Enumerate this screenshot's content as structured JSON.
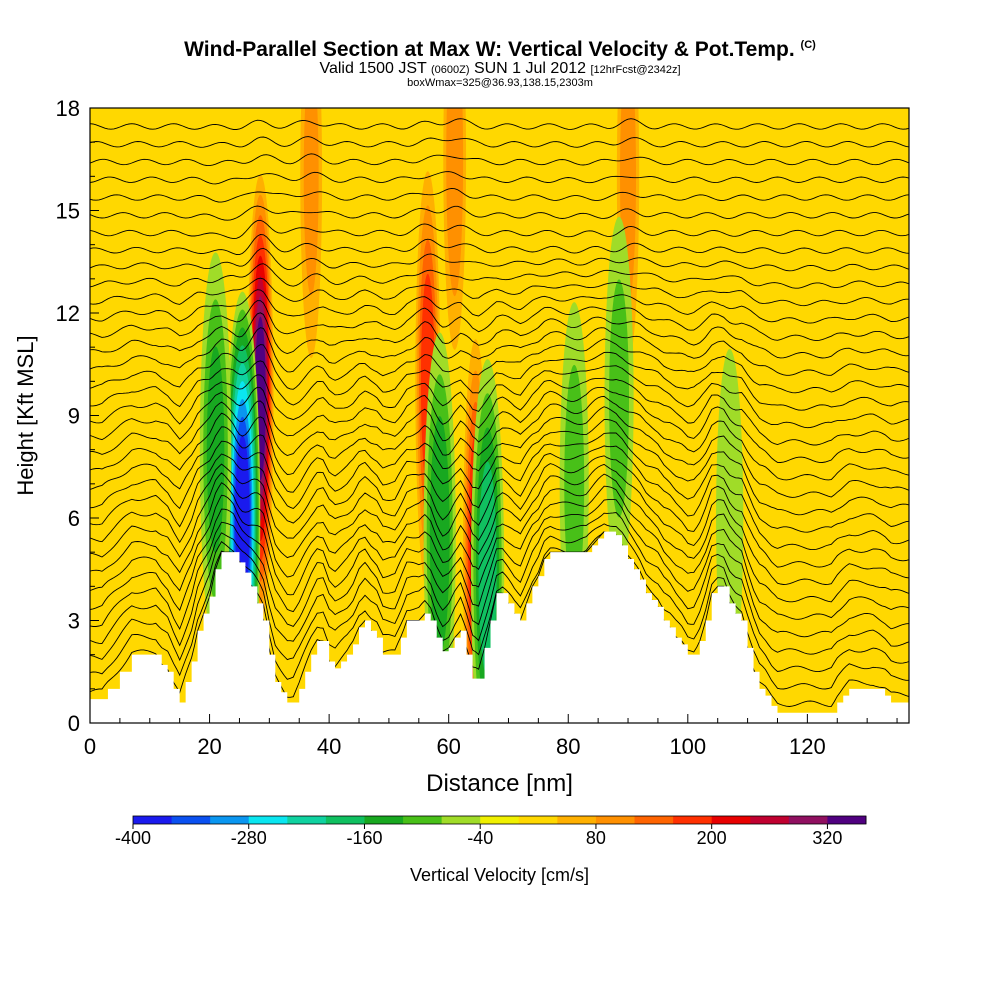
{
  "title": {
    "main": "Wind-Parallel Section at Max W: Vertical Velocity & Pot.Temp.",
    "main_suffix": "(C)",
    "valid_prefix": "Valid 1500 JST",
    "valid_utc": "(0600Z)",
    "valid_date": "SUN 1 Jul 2012",
    "forecast": "[12hrFcst@2342z]",
    "box": "boxWmax=325@36.93,138.15,2303m"
  },
  "chart_data": {
    "type": "heatmap",
    "xlabel": "Distance [nm]",
    "ylabel": "Height [Kft MSL]",
    "xlim": [
      0,
      137
    ],
    "ylim": [
      0,
      18
    ],
    "x_ticks": [
      0,
      20,
      40,
      60,
      80,
      100,
      120
    ],
    "y_ticks": [
      0,
      3,
      6,
      9,
      12,
      15,
      18
    ],
    "colorbar": {
      "label": "Vertical Velocity [cm/s]",
      "levels": [
        -400,
        -360,
        -320,
        -280,
        -240,
        -200,
        -160,
        -120,
        -80,
        -40,
        0,
        40,
        80,
        120,
        160,
        200,
        240,
        280,
        320,
        360
      ],
      "tick_labels": [
        -400,
        -280,
        -160,
        -40,
        80,
        200,
        320
      ],
      "colors": [
        "#1a1aee",
        "#0a50f0",
        "#0a96f0",
        "#0ae6f0",
        "#10d2a0",
        "#10c060",
        "#18a820",
        "#48c018",
        "#a0dc28",
        "#f0f000",
        "#ffd800",
        "#ffb000",
        "#ff9000",
        "#ff6400",
        "#ff3000",
        "#e80000",
        "#c00030",
        "#901060",
        "#500080"
      ]
    },
    "terrain_kft": [
      [
        0,
        0.7
      ],
      [
        2,
        0.7
      ],
      [
        3,
        1.0
      ],
      [
        5,
        1.5
      ],
      [
        7,
        2.0
      ],
      [
        9,
        2.0
      ],
      [
        11,
        2.0
      ],
      [
        12,
        1.7
      ],
      [
        13,
        1.5
      ],
      [
        14,
        1.0
      ],
      [
        15,
        0.6
      ],
      [
        16,
        1.2
      ],
      [
        17,
        1.8
      ],
      [
        18,
        2.7
      ],
      [
        19,
        3.2
      ],
      [
        20,
        3.7
      ],
      [
        21,
        4.5
      ],
      [
        22,
        5.0
      ],
      [
        24,
        5.0
      ],
      [
        25,
        4.7
      ],
      [
        26,
        4.4
      ],
      [
        27,
        4.0
      ],
      [
        28,
        3.5
      ],
      [
        29,
        3.0
      ],
      [
        30,
        2.0
      ],
      [
        31,
        1.2
      ],
      [
        32,
        0.9
      ],
      [
        33,
        0.6
      ],
      [
        34,
        0.6
      ],
      [
        35,
        1.0
      ],
      [
        36,
        1.5
      ],
      [
        37,
        2.0
      ],
      [
        38,
        2.4
      ],
      [
        39,
        2.4
      ],
      [
        40,
        1.8
      ],
      [
        41,
        1.6
      ],
      [
        42,
        1.8
      ],
      [
        43,
        2.0
      ],
      [
        44,
        2.3
      ],
      [
        45,
        2.8
      ],
      [
        46,
        3.0
      ],
      [
        47,
        2.7
      ],
      [
        48,
        2.5
      ],
      [
        49,
        2.0
      ],
      [
        51,
        2.0
      ],
      [
        52,
        2.5
      ],
      [
        53,
        3.0
      ],
      [
        55,
        3.0
      ],
      [
        56,
        3.2
      ],
      [
        57,
        3.0
      ],
      [
        58,
        2.5
      ],
      [
        59,
        2.1
      ],
      [
        60,
        2.2
      ],
      [
        61,
        2.5
      ],
      [
        62,
        2.7
      ],
      [
        63,
        2.0
      ],
      [
        64,
        1.3
      ],
      [
        65,
        1.3
      ],
      [
        66,
        2.2
      ],
      [
        67,
        3.0
      ],
      [
        68,
        3.8
      ],
      [
        69,
        3.8
      ],
      [
        70,
        3.5
      ],
      [
        71,
        3.2
      ],
      [
        72,
        3.0
      ],
      [
        73,
        3.5
      ],
      [
        74,
        4.0
      ],
      [
        75,
        4.3
      ],
      [
        76,
        4.8
      ],
      [
        77,
        5.0
      ],
      [
        83,
        5.0
      ],
      [
        84,
        5.2
      ],
      [
        85,
        5.4
      ],
      [
        86,
        5.6
      ],
      [
        88,
        5.5
      ],
      [
        89,
        5.2
      ],
      [
        90,
        4.8
      ],
      [
        91,
        4.5
      ],
      [
        92,
        4.2
      ],
      [
        93,
        3.8
      ],
      [
        94,
        3.6
      ],
      [
        95,
        3.4
      ],
      [
        96,
        3.0
      ],
      [
        97,
        2.8
      ],
      [
        98,
        2.5
      ],
      [
        99,
        2.3
      ],
      [
        100,
        2.0
      ],
      [
        101,
        2.0
      ],
      [
        102,
        2.4
      ],
      [
        103,
        3.0
      ],
      [
        104,
        3.8
      ],
      [
        105,
        4.0
      ],
      [
        106,
        4.0
      ],
      [
        107,
        3.5
      ],
      [
        108,
        3.2
      ],
      [
        109,
        3.0
      ],
      [
        110,
        2.2
      ],
      [
        111,
        1.5
      ],
      [
        112,
        1.0
      ],
      [
        113,
        0.8
      ],
      [
        114,
        0.5
      ],
      [
        115,
        0.3
      ],
      [
        117,
        0.3
      ],
      [
        120,
        0.3
      ],
      [
        121,
        0.3
      ],
      [
        123,
        0.3
      ],
      [
        124,
        0.3
      ],
      [
        125,
        0.6
      ],
      [
        126,
        0.8
      ],
      [
        127,
        1.0
      ],
      [
        130,
        1.0
      ],
      [
        131,
        1.0
      ],
      [
        133,
        0.8
      ],
      [
        134,
        0.6
      ],
      [
        135,
        0.6
      ],
      [
        137,
        0.6
      ]
    ],
    "updraft_cores": [
      {
        "x": 28.5,
        "z": 9.5,
        "w": 330
      },
      {
        "x": 56.5,
        "z": 10.0,
        "w": 180
      },
      {
        "x": 64.5,
        "z": 5.0,
        "w": 200
      },
      {
        "x": 90.0,
        "z": 16.0,
        "w": 90
      },
      {
        "x": 61.0,
        "z": 16.5,
        "w": 100
      },
      {
        "x": 37.0,
        "z": 16.0,
        "w": 80
      }
    ],
    "downdraft_cores": [
      {
        "x": 25.5,
        "z": 6.0,
        "w": -380
      },
      {
        "x": 21.0,
        "z": 8.0,
        "w": -120
      },
      {
        "x": 58.5,
        "z": 5.5,
        "w": -140
      },
      {
        "x": 66.5,
        "z": 4.5,
        "w": -180
      },
      {
        "x": 88.5,
        "z": 9.5,
        "w": -80
      },
      {
        "x": 81.0,
        "z": 7.0,
        "w": -80
      },
      {
        "x": 107.0,
        "z": 6.0,
        "w": -60
      }
    ],
    "isentropes": {
      "count": 34,
      "base_kft": 0.3,
      "spacing_kft": 0.52
    }
  }
}
